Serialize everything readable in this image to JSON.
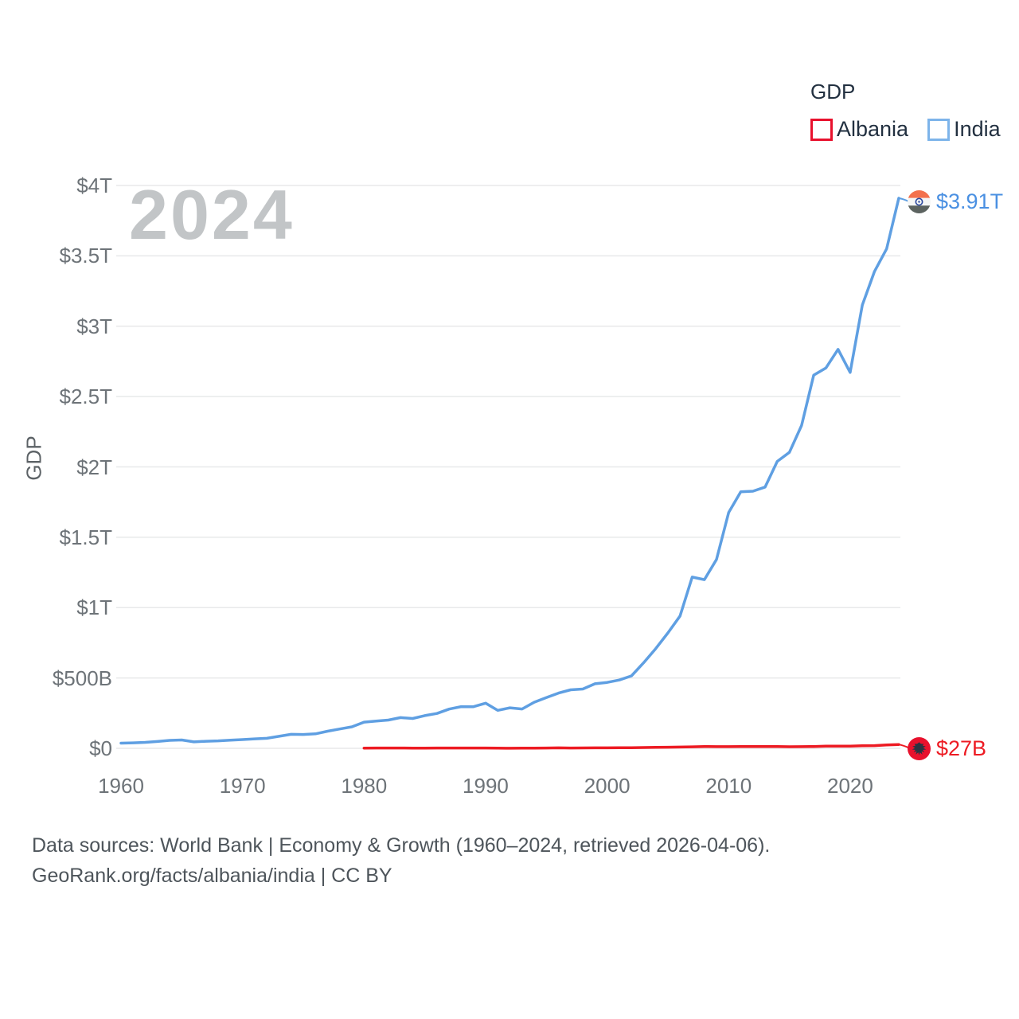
{
  "watermark": "2024",
  "legend": {
    "title": "GDP",
    "items": [
      {
        "label": "Albania",
        "color": "#e8112d"
      },
      {
        "label": "India",
        "color": "#7db4ea"
      }
    ]
  },
  "y_axis": {
    "title": "GDP",
    "ticks": [
      "$0",
      "$500B",
      "$1T",
      "$1.5T",
      "$2T",
      "$2.5T",
      "$3T",
      "$3.5T",
      "$4T"
    ]
  },
  "x_axis": {
    "ticks": [
      "1960",
      "1970",
      "1980",
      "1990",
      "2000",
      "2010",
      "2020"
    ]
  },
  "end_labels": {
    "india": {
      "value": "$3.91T",
      "flag": "india-flag",
      "color": "#4a90e2"
    },
    "albania": {
      "value": "$27B",
      "flag": "albania-flag",
      "color": "#ed1b23"
    }
  },
  "footer": {
    "line1": "Data sources: World Bank | Economy & Growth (1960–2024, retrieved 2026-04-06).",
    "line2": "GeoRank.org/facts/albania/india | CC BY"
  },
  "chart_data": {
    "type": "line",
    "title": "GDP",
    "ylabel": "GDP",
    "units": "billions of current USD",
    "xlim": [
      1960,
      2024
    ],
    "ylim": [
      0,
      4000
    ],
    "grid": "horizontal",
    "legend_position": "top-right",
    "yticks_values": [
      0,
      500,
      1000,
      1500,
      2000,
      2500,
      3000,
      3500,
      4000
    ],
    "xticks_values": [
      1960,
      1970,
      1980,
      1990,
      2000,
      2010,
      2020
    ],
    "series": [
      {
        "name": "India",
        "color": "#5f9fe2",
        "x_start": 1960,
        "end_label": "$3.91T",
        "values": [
          37.0,
          39.2,
          42.2,
          48.4,
          56.5,
          59.6,
          45.9,
          50.1,
          53.1,
          58.4,
          62.4,
          67.4,
          71.5,
          85.5,
          99.5,
          98.5,
          102.7,
          121.5,
          137.3,
          152.8,
          186.3,
          193.5,
          200.7,
          218.3,
          212.2,
          232.5,
          248.0,
          279.0,
          296.6,
          296.0,
          320.9,
          270.1,
          288.2,
          279.3,
          327.3,
          360.3,
          392.9,
          415.7,
          421.4,
          458.8,
          468.4,
          485.4,
          514.9,
          607.7,
          709.1,
          820.4,
          940.3,
          1216.7,
          1198.9,
          1341.9,
          1675.6,
          1823.1,
          1827.6,
          1856.7,
          2039.1,
          2103.6,
          2294.8,
          2651.5,
          2702.9,
          2835.6,
          2671.6,
          3150.3,
          3389.7,
          3549.9,
          3910.0
        ]
      },
      {
        "name": "Albania",
        "color": "#ed1b23",
        "x_start": 1980,
        "end_label": "$27B",
        "values": [
          1.9,
          2.0,
          2.0,
          2.0,
          1.9,
          1.9,
          2.1,
          2.1,
          2.1,
          2.3,
          2.1,
          1.1,
          0.7,
          1.2,
          1.9,
          2.4,
          3.2,
          2.3,
          2.7,
          3.2,
          3.5,
          4.1,
          4.4,
          5.6,
          7.2,
          8.0,
          8.9,
          10.7,
          12.9,
          12.0,
          11.9,
          12.9,
          12.3,
          12.8,
          13.2,
          11.4,
          11.9,
          13.0,
          15.1,
          15.4,
          15.2,
          18.0,
          19.0,
          23.5,
          27.0
        ]
      }
    ]
  }
}
